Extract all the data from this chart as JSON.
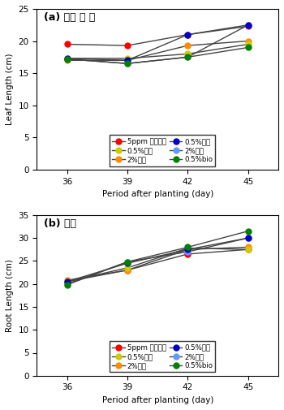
{
  "x": [
    36,
    39,
    42,
    45
  ],
  "top": {
    "title": "(a) 줄기 및 잎",
    "ylabel": "Leaf Length (cm)",
    "ylim": [
      0,
      25
    ],
    "yticks": [
      0,
      5,
      10,
      15,
      20,
      25
    ],
    "series": [
      {
        "label": "5ppm 흡수이행",
        "color": "#FF0000",
        "data": [
          19.5,
          19.3,
          21.0,
          22.3
        ]
      },
      {
        "label": "2%참숯",
        "color": "#FF8C00",
        "data": [
          17.0,
          17.0,
          19.3,
          20.0
        ]
      },
      {
        "label": "2%석회",
        "color": "#6699FF",
        "data": [
          17.2,
          16.5,
          17.5,
          22.5
        ]
      },
      {
        "label": "0.5%참숯",
        "color": "#CCCC00",
        "data": [
          17.3,
          17.3,
          18.0,
          19.5
        ]
      },
      {
        "label": "0.5%석회",
        "color": "#0000CC",
        "data": [
          17.3,
          17.0,
          21.0,
          22.5
        ]
      },
      {
        "label": "0.5%bio",
        "color": "#008000",
        "data": [
          17.2,
          16.5,
          17.5,
          19.0
        ]
      }
    ],
    "legend_order": [
      0,
      3,
      1,
      4,
      2,
      5
    ]
  },
  "bottom": {
    "title": "(b) 뿌리",
    "ylabel": "Root Length (cm)",
    "ylim": [
      0,
      35
    ],
    "yticks": [
      0,
      5,
      10,
      15,
      20,
      25,
      30,
      35
    ],
    "series": [
      {
        "label": "5ppm 흡수이행",
        "color": "#FF0000",
        "data": [
          20.5,
          23.0,
          26.5,
          27.5
        ]
      },
      {
        "label": "2%참숯",
        "color": "#FF8C00",
        "data": [
          20.8,
          23.0,
          27.5,
          28.0
        ]
      },
      {
        "label": "2%석회",
        "color": "#6699FF",
        "data": [
          20.0,
          24.8,
          27.0,
          30.0
        ]
      },
      {
        "label": "0.5%참숯",
        "color": "#CCCC00",
        "data": [
          20.5,
          23.5,
          27.8,
          27.5
        ]
      },
      {
        "label": "0.5%석회",
        "color": "#0000CC",
        "data": [
          20.5,
          24.5,
          27.5,
          30.0
        ]
      },
      {
        "label": "0.5%bio",
        "color": "#008000",
        "data": [
          19.8,
          24.8,
          28.0,
          31.5
        ]
      }
    ],
    "legend_order": [
      0,
      3,
      1,
      4,
      2,
      5
    ]
  },
  "xlabel": "Period after planting (day)",
  "xticks": [
    36,
    39,
    42,
    45
  ],
  "marker": "o",
  "markersize": 5,
  "linewidth": 1.0,
  "linecolor": "#444444"
}
